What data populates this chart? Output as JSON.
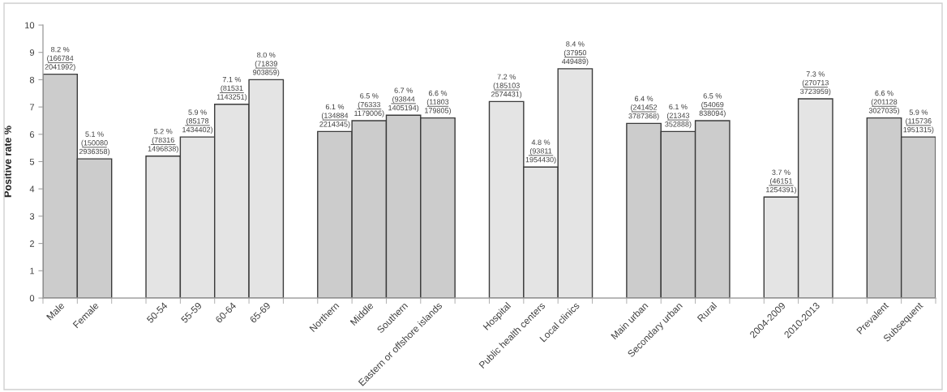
{
  "chart_data": {
    "type": "bar",
    "ylabel": "Positive rate %",
    "categories": [
      "Male",
      "Female",
      null,
      "50-54",
      "55-59",
      "60-64",
      "65-69",
      null,
      "Northern",
      "Middle",
      "Southern",
      "Eastern or offshore islands",
      null,
      "Hospital",
      "Public health centers",
      "Local clinics",
      null,
      "Main urban",
      "Secondary urban",
      "Rural",
      null,
      "2004-2009",
      "2010-2013",
      null,
      "Prevalent",
      "Subsequent"
    ],
    "values": [
      8.2,
      5.1,
      null,
      5.2,
      5.9,
      7.1,
      8.0,
      null,
      6.1,
      6.5,
      6.7,
      6.6,
      null,
      7.2,
      4.8,
      8.4,
      null,
      6.4,
      6.1,
      6.5,
      null,
      3.7,
      7.3,
      null,
      6.6,
      5.9
    ],
    "colors": [
      "#cccccc",
      "#cccccc",
      null,
      "#e4e4e4",
      "#e4e4e4",
      "#e4e4e4",
      "#e4e4e4",
      null,
      "#cccccc",
      "#cccccc",
      "#cccccc",
      "#cccccc",
      null,
      "#e4e4e4",
      "#e4e4e4",
      "#e4e4e4",
      null,
      "#cccccc",
      "#cccccc",
      "#cccccc",
      null,
      "#e4e4e4",
      "#e4e4e4",
      null,
      "#cccccc",
      "#cccccc"
    ],
    "value_labels": [
      "8.2 %\n(166784\n2041992)",
      "5.1 %\n(150080\n2936358)",
      null,
      "5.2 %\n(78316\n1496838)",
      "5.9 %\n(85178\n1434402)",
      "7.1 %\n(81531\n1143251)",
      "8.0 %\n(71839\n903859)",
      null,
      "6.1 %\n(134884\n2214345)",
      "6.5 %\n(76333\n1179006)",
      "6.7 %\n(93844\n1405194)",
      "6.6 %\n(11803\n179805)",
      null,
      "7.2 %\n(185103\n2574431)",
      "4.8 %\n(93811\n1954430)",
      "8.4 %\n(37950\n449489)",
      null,
      "6.4 %\n(241452\n3787368)",
      "6.1 %\n(21343\n352888)",
      "6.5 %\n(54069\n838094)",
      null,
      "3.7 %\n(46151\n1254391)",
      "7.3 %\n(270713\n3723959)",
      null,
      "6.6 %\n(201128\n3027035)",
      "5.9 %\n(115736\n1951315)"
    ],
    "ylim": [
      0,
      10
    ],
    "yticks": [
      0,
      1,
      2,
      3,
      4,
      5,
      6,
      7,
      8,
      9,
      10
    ]
  }
}
